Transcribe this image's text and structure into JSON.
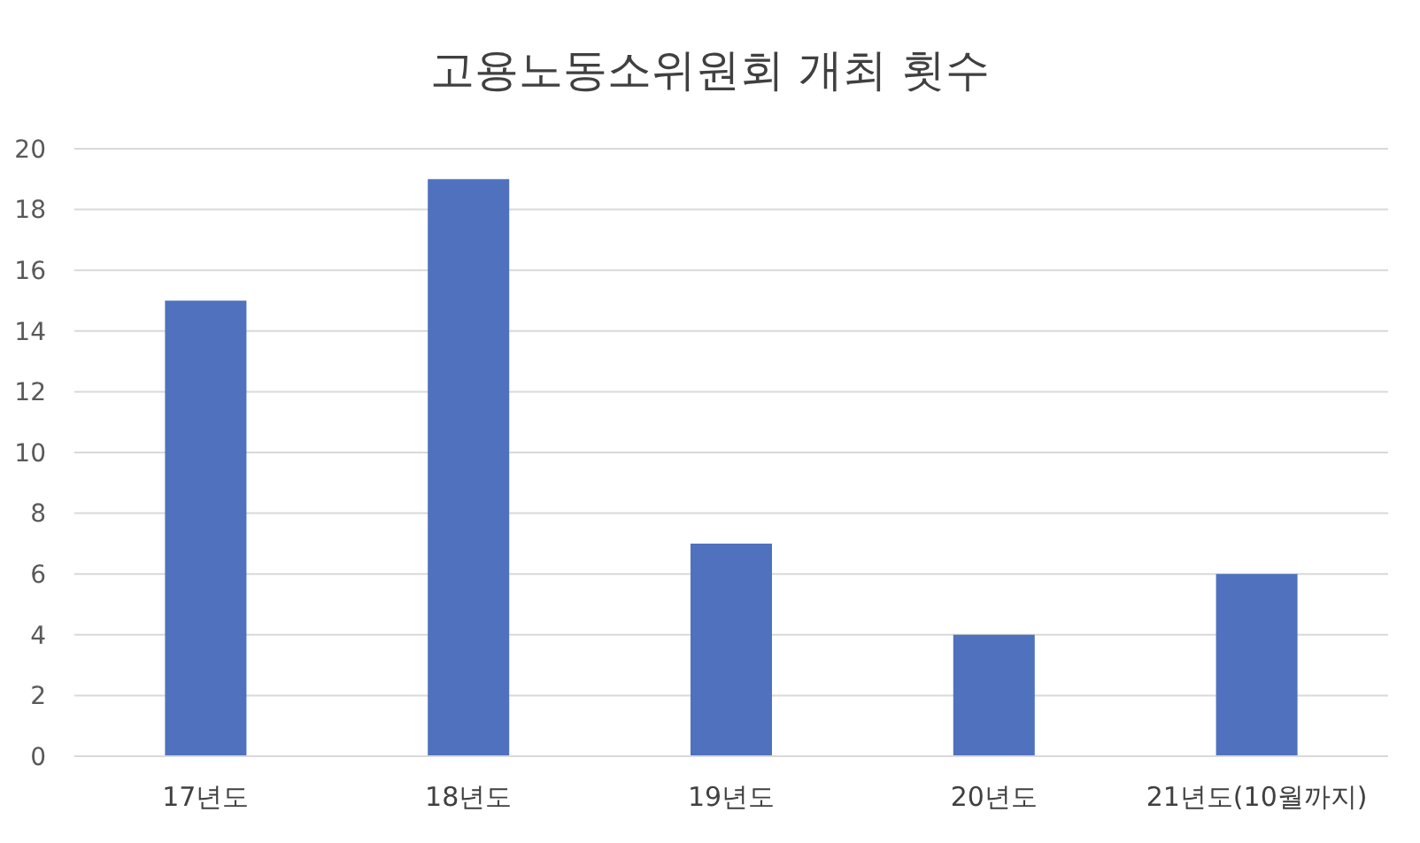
{
  "chart_data": {
    "type": "bar",
    "title": "고용노동소위원회 개최 횟수",
    "categories": [
      "17년도",
      "18년도",
      "19년도",
      "20년도",
      "21년도(10월까지)"
    ],
    "values": [
      15,
      19,
      7,
      4,
      6
    ],
    "color": "#4f71be",
    "ylim": [
      0,
      20
    ],
    "yticks": [
      0,
      2,
      4,
      6,
      8,
      10,
      12,
      14,
      16,
      18,
      20
    ],
    "grid": "y"
  }
}
